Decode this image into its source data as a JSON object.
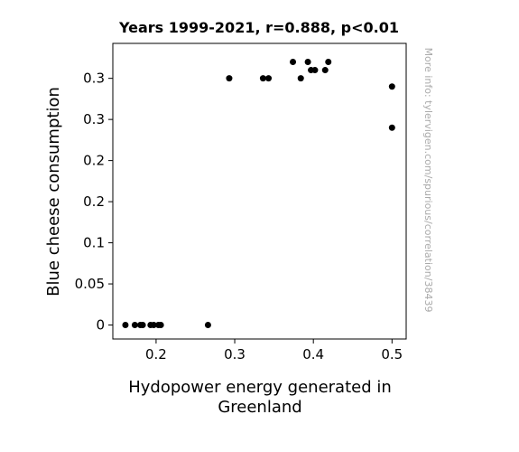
{
  "chart_data": {
    "type": "scatter",
    "title": "Years 1999-2021, r=0.888, p<0.01",
    "xlabel_lines": [
      "Hydopower energy generated in",
      "Greenland"
    ],
    "ylabel": "Blue cheese consumption",
    "watermark": "More info: tylervigen.com/spurious/correlation/38439",
    "xlim": [
      0.145,
      0.518
    ],
    "ylim": [
      -0.017,
      0.3425
    ],
    "grid": false,
    "legend": "none",
    "marker_color": "#000000",
    "x_ticks": [
      {
        "value": 0.2,
        "label": "0.2"
      },
      {
        "value": 0.3,
        "label": "0.3"
      },
      {
        "value": 0.4,
        "label": "0.4"
      },
      {
        "value": 0.5,
        "label": "0.5"
      }
    ],
    "y_ticks": [
      {
        "value": 0.0,
        "label": "0"
      },
      {
        "value": 0.05,
        "label": "0.05"
      },
      {
        "value": 0.1,
        "label": "0.1"
      },
      {
        "value": 0.15,
        "label": "0.2"
      },
      {
        "value": 0.2,
        "label": "0.2"
      },
      {
        "value": 0.25,
        "label": "0.3"
      },
      {
        "value": 0.3,
        "label": "0.3"
      }
    ],
    "points": [
      {
        "x": 0.161,
        "y": 0.0
      },
      {
        "x": 0.173,
        "y": 0.0
      },
      {
        "x": 0.18,
        "y": 0.0
      },
      {
        "x": 0.183,
        "y": 0.0
      },
      {
        "x": 0.193,
        "y": 0.0
      },
      {
        "x": 0.197,
        "y": 0.0
      },
      {
        "x": 0.203,
        "y": 0.0
      },
      {
        "x": 0.206,
        "y": 0.0
      },
      {
        "x": 0.266,
        "y": 0.0
      },
      {
        "x": 0.293,
        "y": 0.3
      },
      {
        "x": 0.336,
        "y": 0.3
      },
      {
        "x": 0.343,
        "y": 0.3
      },
      {
        "x": 0.374,
        "y": 0.32
      },
      {
        "x": 0.384,
        "y": 0.3
      },
      {
        "x": 0.393,
        "y": 0.32
      },
      {
        "x": 0.397,
        "y": 0.31
      },
      {
        "x": 0.402,
        "y": 0.31
      },
      {
        "x": 0.415,
        "y": 0.31
      },
      {
        "x": 0.419,
        "y": 0.32
      },
      {
        "x": 0.5,
        "y": 0.29
      },
      {
        "x": 0.5,
        "y": 0.24
      }
    ]
  }
}
